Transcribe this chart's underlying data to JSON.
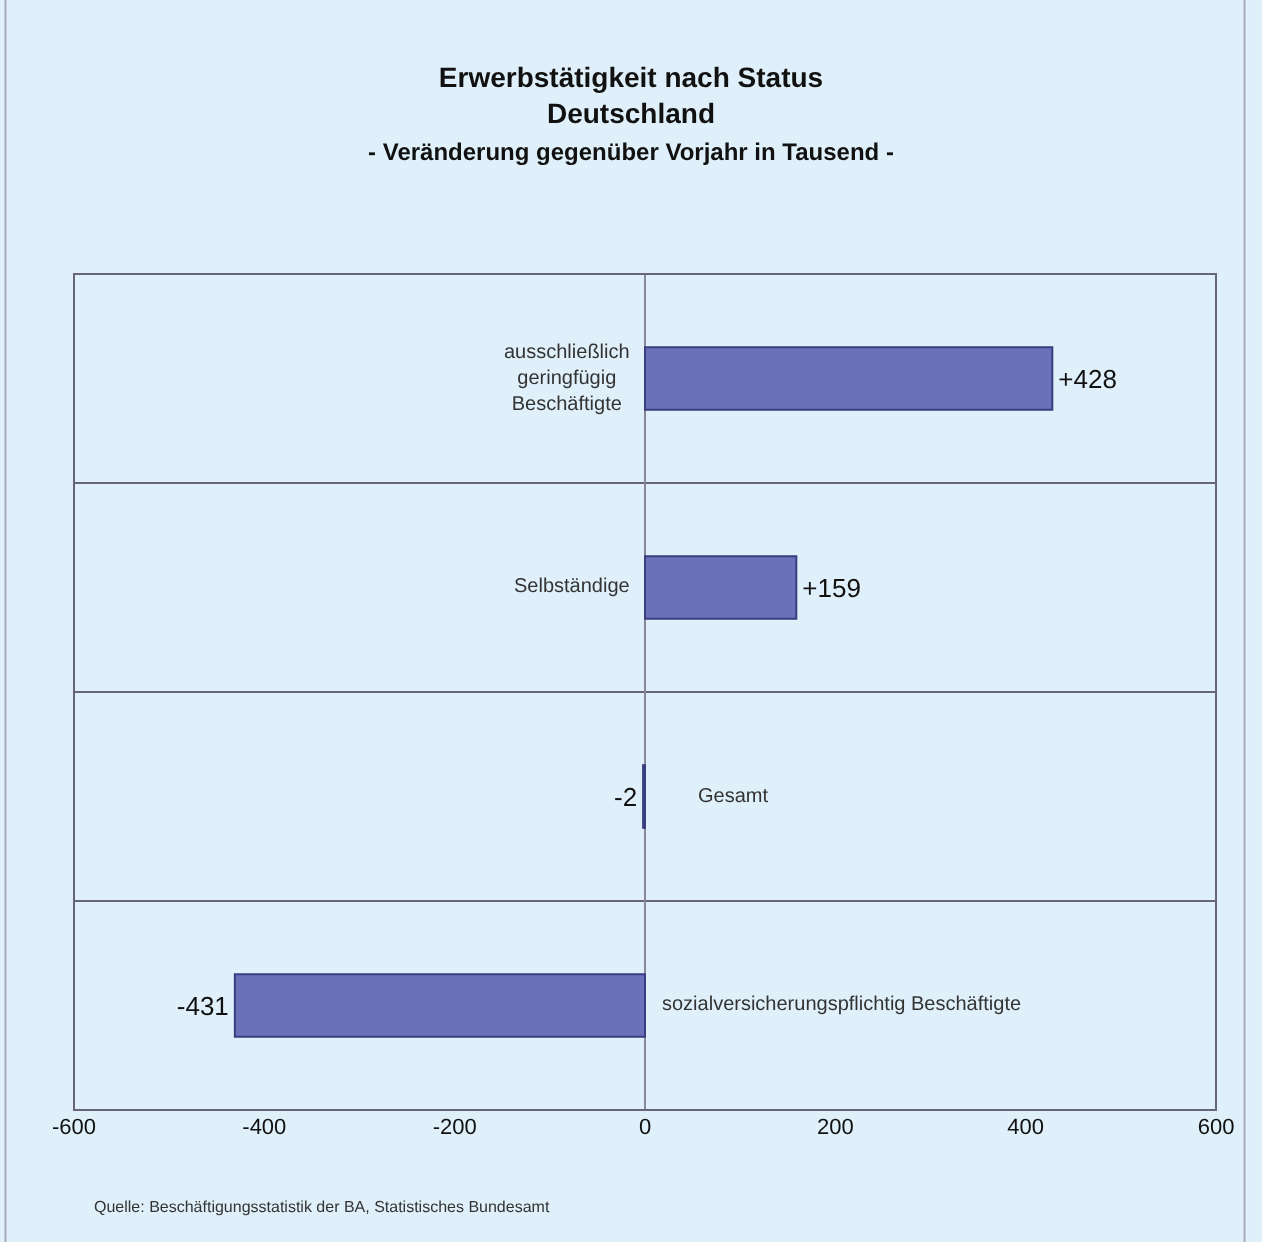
{
  "chart_data": {
    "type": "bar",
    "orientation": "horizontal",
    "title": "Erwerbstätigkeit nach Status\nDeutschland",
    "subtitle": "- Veränderung gegenüber Vorjahr in Tausend -",
    "categories": [
      "ausschließlich geringfügig Beschäftigte",
      "Selbständige",
      "Gesamt",
      "sozialversicherungspflichtig Beschäftigte"
    ],
    "values": [
      428,
      159,
      -2,
      -431
    ],
    "value_labels": [
      "+428",
      "+159",
      "-2",
      "-431"
    ],
    "color": "#6c70b8",
    "xlim": [
      -600,
      600
    ],
    "xticks": [
      -600,
      -400,
      -200,
      0,
      200,
      400,
      600
    ],
    "grid": "y",
    "tick_labels": "x",
    "annotations": [
      "Quelle: Beschäftigungsstatistik der BA, Statistisches Bundesamt"
    ]
  }
}
